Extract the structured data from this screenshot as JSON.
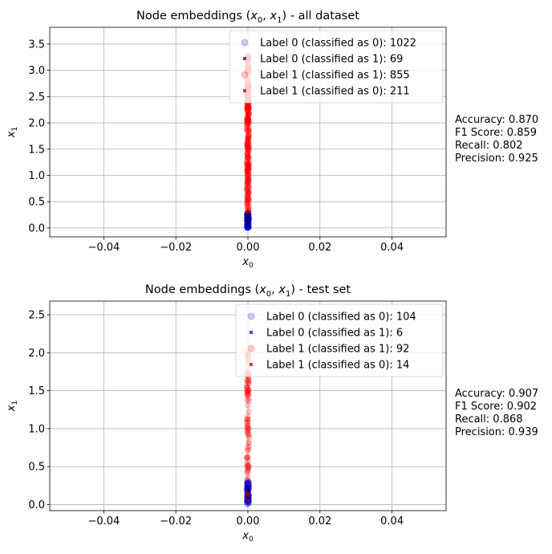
{
  "chart_data": [
    {
      "type": "scatter",
      "title": {
        "prefix": "Node embeddings (",
        "v0": "x",
        "s0": "0",
        "comma": ", ",
        "v1": "x",
        "s1": "1",
        "suffix": ") - all dataset"
      },
      "xlabel": {
        "var": "x",
        "sub": "0"
      },
      "ylabel": {
        "var": "x",
        "sub": "1"
      },
      "xlim": [
        -0.055,
        0.055
      ],
      "ylim": [
        -0.17,
        3.82
      ],
      "xticks": [
        -0.04,
        -0.02,
        0.0,
        0.02,
        0.04
      ],
      "xtick_labels": [
        "−0.04",
        "−0.02",
        "0.00",
        "0.02",
        "0.04"
      ],
      "yticks": [
        0.0,
        0.5,
        1.0,
        1.5,
        2.0,
        2.5,
        3.0,
        3.5
      ],
      "ytick_labels": [
        "0.0",
        "0.5",
        "1.0",
        "1.5",
        "2.0",
        "2.5",
        "3.0",
        "3.5"
      ],
      "grid": true,
      "legend_position": "top-right",
      "series": [
        {
          "name": "Label 0 (classified as 0): 1022",
          "marker": "circle",
          "color": "#0000ff",
          "x": 0,
          "y_range": [
            0.0,
            0.28
          ],
          "count": 1022
        },
        {
          "name": "Label 0 (classified as 1): 69",
          "marker": "x",
          "color": "#00008b",
          "x": 0,
          "y_range": [
            0.02,
            0.25
          ],
          "count": 69
        },
        {
          "name": "Label 1 (classified as 1): 855",
          "marker": "circle",
          "color": "#ff0000",
          "x": 0,
          "y_range": [
            0.25,
            3.3
          ],
          "count": 855
        },
        {
          "name": "Label 1 (classified as 0): 211",
          "marker": "x",
          "color": "#8b0000",
          "x": 0,
          "y_range": [
            0.05,
            0.3
          ],
          "count": 211
        }
      ],
      "metrics": [
        "Accuracy: 0.870",
        "F1 Score: 0.859",
        "Recall: 0.802",
        "Precision: 0.925"
      ]
    },
    {
      "type": "scatter",
      "title": {
        "prefix": "Node embeddings (",
        "v0": "x",
        "s0": "0",
        "comma": ", ",
        "v1": "x",
        "s1": "1",
        "suffix": ") - test set"
      },
      "xlabel": {
        "var": "x",
        "sub": "0"
      },
      "ylabel": {
        "var": "x",
        "sub": "1"
      },
      "xlim": [
        -0.055,
        0.055
      ],
      "ylim": [
        -0.08,
        2.68
      ],
      "xticks": [
        -0.04,
        -0.02,
        0.0,
        0.02,
        0.04
      ],
      "xtick_labels": [
        "−0.04",
        "−0.02",
        "0.00",
        "0.02",
        "0.04"
      ],
      "yticks": [
        0.0,
        0.5,
        1.0,
        1.5,
        2.0,
        2.5
      ],
      "ytick_labels": [
        "0.0",
        "0.5",
        "1.0",
        "1.5",
        "2.0",
        "2.5"
      ],
      "grid": true,
      "legend_position": "top-right",
      "series": [
        {
          "name": "Label 0 (classified as 0): 104",
          "marker": "circle",
          "color": "#0000ff",
          "x": 0,
          "y_range": [
            0.0,
            0.3
          ],
          "count": 104
        },
        {
          "name": "Label 0 (classified as 1): 6",
          "marker": "x",
          "color": "#00008b",
          "x": 0,
          "y_range": [
            0.05,
            0.25
          ],
          "count": 6
        },
        {
          "name": "Label 1 (classified as 1): 92",
          "marker": "circle",
          "color": "#ff0000",
          "x": 0,
          "y_range": [
            0.3,
            2.0
          ],
          "count": 92
        },
        {
          "name": "Label 1 (classified as 0): 14",
          "marker": "x",
          "color": "#8b0000",
          "x": 0,
          "y_range": [
            0.05,
            0.3
          ],
          "count": 14
        }
      ],
      "metrics": [
        "Accuracy: 0.907",
        "F1 Score: 0.902",
        "Recall: 0.868",
        "Precision: 0.939"
      ]
    }
  ]
}
